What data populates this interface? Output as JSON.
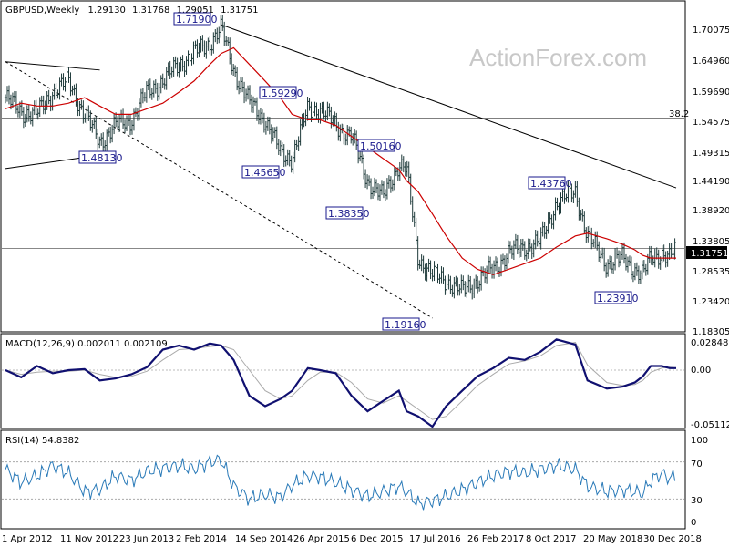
{
  "chart_data": [
    {
      "type": "candlestick",
      "header": {
        "symbol": "GBPUSD,Weekly",
        "open": "1.29130",
        "high": "1.31768",
        "low": "1.29051",
        "close": "1.31751"
      },
      "watermark": "ActionForex.com",
      "ylim": [
        1.17,
        1.76
      ],
      "y_ticks": [
        "1.70075",
        "1.64960",
        "1.59690",
        "1.54575",
        "1.49315",
        "1.44190",
        "1.38920",
        "1.33805",
        "1.28535",
        "1.23420",
        "1.18305"
      ],
      "x_ticks": [
        "1 Apr 2012",
        "11 Nov 2012",
        "23 Jun 2013",
        "2 Feb 2014",
        "14 Sep 2014",
        "26 Apr 2015",
        "6 Dec 2015",
        "17 Jul 2016",
        "26 Feb 2017",
        "8 Oct 2017",
        "20 May 2018",
        "30 Dec 2018"
      ],
      "current_price": "1.31751",
      "fib_level": {
        "label": "38.2",
        "value": 1.5525
      },
      "pivots": [
        {
          "label": "1.48130",
          "date": "2012-10-15",
          "value": 1.4813
        },
        {
          "label": "1.71900",
          "date": "2014-07-14",
          "value": 1.719
        },
        {
          "label": "1.59290",
          "date": "2015-06-15",
          "value": 1.5929
        },
        {
          "label": "1.45650",
          "date": "2015-04-12",
          "value": 1.4565
        },
        {
          "label": "1.50160",
          "date": "2016-02-01",
          "value": 1.5016
        },
        {
          "label": "1.38350",
          "date": "2015-12-20",
          "value": 1.3835
        },
        {
          "label": "1.19160",
          "date": "2016-10-09",
          "value": 1.1916
        },
        {
          "label": "1.43760",
          "date": "2018-04-15",
          "value": 1.4376
        },
        {
          "label": "1.23910",
          "date": "2019-01-01",
          "value": 1.2391
        }
      ],
      "series": [
        {
          "name": "GBPUSD,Weekly",
          "dates": [
            "2012-04-01",
            "2012-06-01",
            "2012-08-01",
            "2012-10-01",
            "2012-12-01",
            "2013-02-01",
            "2013-04-01",
            "2013-06-01",
            "2013-08-01",
            "2013-10-01",
            "2013-12-01",
            "2014-02-01",
            "2014-04-01",
            "2014-06-01",
            "2014-07-15",
            "2014-09-01",
            "2014-11-01",
            "2015-01-01",
            "2015-03-01",
            "2015-04-15",
            "2015-06-15",
            "2015-08-01",
            "2015-10-01",
            "2015-12-01",
            "2016-02-01",
            "2016-04-01",
            "2016-06-01",
            "2016-07-01",
            "2016-08-15",
            "2016-10-09",
            "2016-12-01",
            "2017-02-01",
            "2017-04-01",
            "2017-06-01",
            "2017-08-01",
            "2017-10-01",
            "2017-12-01",
            "2018-02-01",
            "2018-04-15",
            "2018-06-01",
            "2018-08-15",
            "2018-10-15",
            "2018-12-01",
            "2019-01-01",
            "2019-02-01",
            "2019-03-15",
            "2019-04-15",
            "2019-05-10"
          ],
          "values": [
            1.59,
            1.565,
            1.56,
            1.6,
            1.62,
            1.56,
            1.51,
            1.54,
            1.55,
            1.6,
            1.62,
            1.65,
            1.67,
            1.69,
            1.715,
            1.64,
            1.58,
            1.55,
            1.49,
            1.48,
            1.57,
            1.57,
            1.54,
            1.52,
            1.44,
            1.41,
            1.47,
            1.46,
            1.3,
            1.27,
            1.26,
            1.24,
            1.26,
            1.28,
            1.31,
            1.32,
            1.33,
            1.4,
            1.42,
            1.34,
            1.29,
            1.3,
            1.28,
            1.27,
            1.3,
            1.31,
            1.3,
            1.317
          ]
        },
        {
          "name": "MA",
          "values": [
            1.57,
            1.58,
            1.575,
            1.575,
            1.58,
            1.59,
            1.575,
            1.56,
            1.56,
            1.57,
            1.58,
            1.6,
            1.62,
            1.65,
            1.67,
            1.68,
            1.65,
            1.62,
            1.59,
            1.56,
            1.55,
            1.55,
            1.54,
            1.52,
            1.5,
            1.48,
            1.46,
            1.44,
            1.42,
            1.38,
            1.34,
            1.3,
            1.28,
            1.27,
            1.28,
            1.29,
            1.3,
            1.32,
            1.34,
            1.345,
            1.335,
            1.325,
            1.315,
            1.305,
            1.3,
            1.3,
            1.3,
            1.3
          ]
        }
      ],
      "trendlines": [
        {
          "name": "wedge upper",
          "x": [
            "2012-04-01",
            "2013-04-01"
          ],
          "y": [
            1.655,
            1.64
          ]
        },
        {
          "name": "wedge lower",
          "x": [
            "2012-04-01",
            "2013-04-01"
          ],
          "y": [
            1.462,
            1.486
          ]
        },
        {
          "name": "down channel",
          "x": [
            "2014-07-14",
            "2019-05-10"
          ],
          "y": [
            1.722,
            1.427
          ]
        },
        {
          "name": "dashed",
          "x": [
            "2012-04-01",
            "2016-10-09"
          ],
          "y": [
            1.655,
            1.1916
          ]
        }
      ]
    },
    {
      "type": "line",
      "title": "MACD(12,26,9) 0.002011 0.002109",
      "ylim": [
        -0.055,
        0.032
      ],
      "y_ticks": [
        "0.028489",
        "0.00",
        "-0.051125"
      ],
      "series": [
        {
          "name": "MACD",
          "values": [
            0.0,
            -0.007,
            0.004,
            -0.003,
            0.0,
            0.001,
            -0.01,
            -0.008,
            -0.004,
            0.003,
            0.02,
            0.024,
            0.02,
            0.026,
            0.024,
            0.01,
            -0.025,
            -0.035,
            -0.028,
            -0.02,
            0.002,
            0.0,
            -0.003,
            -0.025,
            -0.04,
            -0.03,
            -0.02,
            -0.04,
            -0.045,
            -0.055,
            -0.035,
            -0.02,
            -0.006,
            0.002,
            0.012,
            0.01,
            0.018,
            0.03,
            0.025,
            -0.01,
            -0.018,
            -0.016,
            -0.012,
            -0.006,
            0.004,
            0.004,
            0.002,
            0.002
          ]
        },
        {
          "name": "Signal",
          "values": [
            0.0,
            -0.004,
            -0.002,
            -0.001,
            -0.001,
            0.0,
            -0.004,
            -0.007,
            -0.006,
            -0.001,
            0.01,
            0.02,
            0.021,
            0.023,
            0.024,
            0.02,
            0.0,
            -0.02,
            -0.028,
            -0.025,
            -0.01,
            -0.002,
            -0.002,
            -0.012,
            -0.028,
            -0.032,
            -0.025,
            -0.03,
            -0.038,
            -0.048,
            -0.045,
            -0.03,
            -0.015,
            -0.004,
            0.006,
            0.009,
            0.014,
            0.024,
            0.027,
            0.005,
            -0.012,
            -0.015,
            -0.014,
            -0.01,
            -0.002,
            0.002,
            0.003,
            0.002
          ]
        }
      ]
    },
    {
      "type": "line",
      "title": "RSI(14) 54.8382",
      "ylim": [
        0,
        100
      ],
      "y_ticks": [
        "100",
        "70",
        "30",
        "0"
      ],
      "levels": [
        70,
        30
      ],
      "series": [
        {
          "name": "RSI",
          "values": [
            62,
            48,
            55,
            66,
            58,
            38,
            40,
            55,
            50,
            60,
            63,
            66,
            62,
            70,
            72,
            44,
            30,
            35,
            32,
            45,
            55,
            54,
            48,
            40,
            33,
            38,
            44,
            38,
            25,
            28,
            33,
            40,
            48,
            55,
            60,
            58,
            62,
            66,
            62,
            44,
            38,
            40,
            38,
            36,
            50,
            58,
            52,
            55
          ]
        }
      ]
    }
  ]
}
